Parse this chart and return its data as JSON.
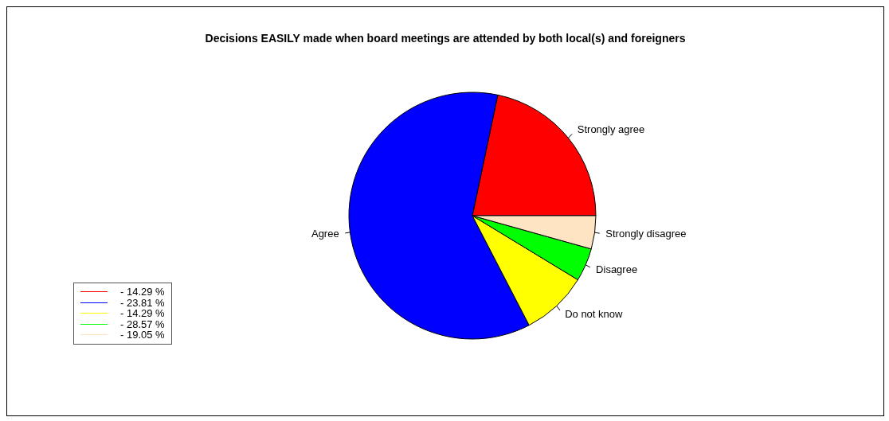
{
  "chart_data": {
    "type": "pie",
    "title": "Decisions EASILY made when board meetings are attended by both local(s) and foreigners",
    "categories": [
      "Strongly agree",
      "Agree",
      "Do not know",
      "Disagree",
      "Strongly disagree"
    ],
    "values": [
      21.7,
      60.9,
      8.7,
      4.35,
      4.35
    ],
    "colors": [
      "#ff0000",
      "#0000ff",
      "#ffff00",
      "#00ff00",
      "#ffe4c4"
    ],
    "annotations": [
      "- 14.29 %",
      "- 23.81 %",
      "- 14.29 %",
      "- 28.57 %",
      "- 19.05 %"
    ]
  }
}
